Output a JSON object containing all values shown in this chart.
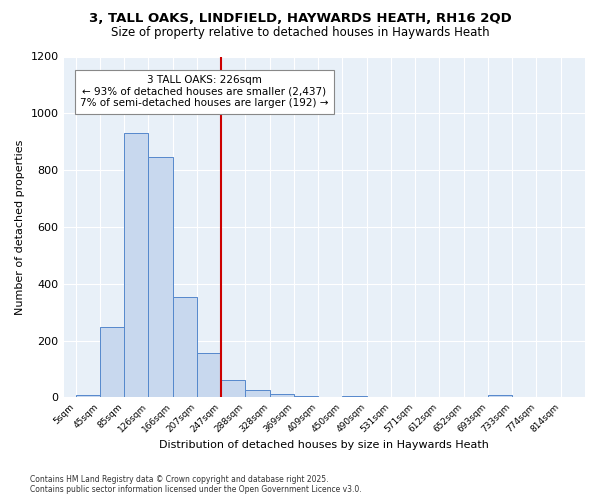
{
  "title": "3, TALL OAKS, LINDFIELD, HAYWARDS HEATH, RH16 2QD",
  "subtitle": "Size of property relative to detached houses in Haywards Heath",
  "xlabel": "Distribution of detached houses by size in Haywards Heath",
  "ylabel": "Number of detached properties",
  "bin_labels": [
    "5sqm",
    "45sqm",
    "85sqm",
    "126sqm",
    "166sqm",
    "207sqm",
    "247sqm",
    "288sqm",
    "328sqm",
    "369sqm",
    "409sqm",
    "450sqm",
    "490sqm",
    "531sqm",
    "571sqm",
    "612sqm",
    "652sqm",
    "693sqm",
    "733sqm",
    "774sqm",
    "814sqm"
  ],
  "bar_values": [
    8,
    248,
    930,
    845,
    355,
    157,
    62,
    28,
    13,
    5,
    0,
    7,
    0,
    0,
    0,
    0,
    0,
    10,
    0,
    0,
    0
  ],
  "bar_color": "#c8d8ee",
  "bar_edge_color": "#5588cc",
  "vline_color": "#cc0000",
  "annotation_text": "3 TALL OAKS: 226sqm\n← 93% of detached houses are smaller (2,437)\n7% of semi-detached houses are larger (192) →",
  "annotation_box_color": "#ffffff",
  "annotation_box_edge": "#888888",
  "ylim": [
    0,
    1200
  ],
  "yticks": [
    0,
    200,
    400,
    600,
    800,
    1000,
    1200
  ],
  "background_color": "#e8f0f8",
  "footer_line1": "Contains HM Land Registry data © Crown copyright and database right 2025.",
  "footer_line2": "Contains public sector information licensed under the Open Government Licence v3.0."
}
